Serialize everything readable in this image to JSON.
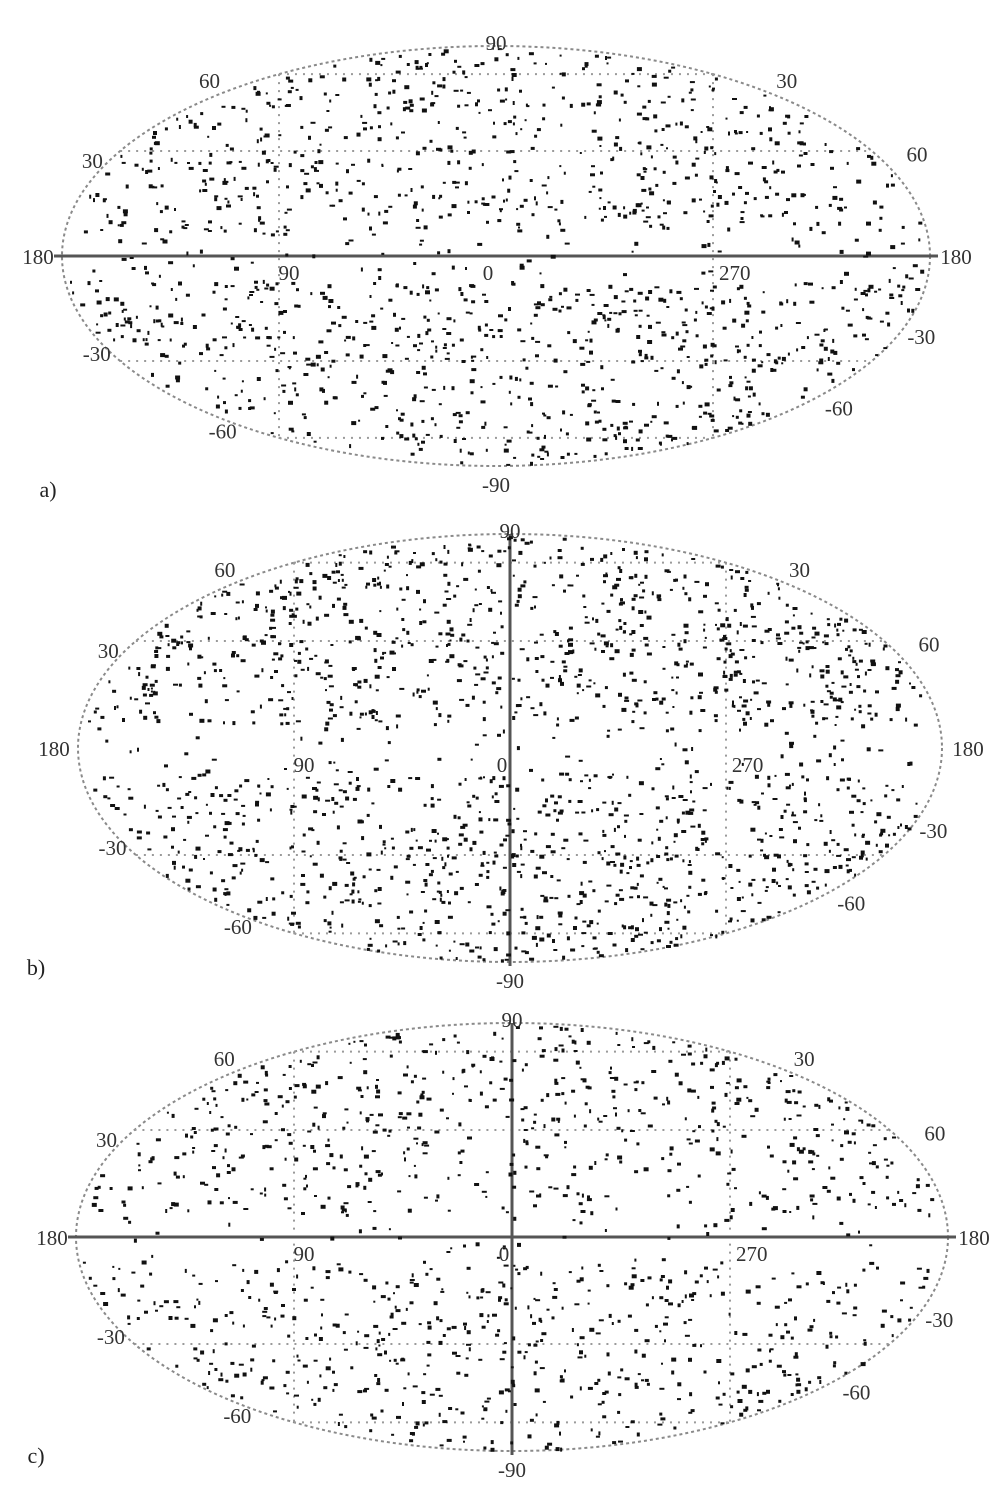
{
  "chart_data": [
    {
      "type": "scatter",
      "projection": "aitoff-hammer",
      "panel_label": "a)",
      "labels": {
        "top": "90",
        "bottom": "-90",
        "left": "180",
        "right": "180",
        "lat_n": [
          "60",
          "30",
          "30",
          "60"
        ],
        "lat_s": [
          "-30",
          "-60",
          "-30",
          "-60"
        ],
        "lon": [
          "90",
          "0",
          "270"
        ]
      },
      "meridian_line": false,
      "equator_line": true,
      "point_count": 1400,
      "seed": 11
    },
    {
      "type": "scatter",
      "projection": "aitoff-hammer",
      "panel_label": "b)",
      "labels": {
        "top": "90",
        "bottom": "-90",
        "left": "180",
        "right": "180",
        "lat_n": [
          "60",
          "30",
          "30",
          "60"
        ],
        "lat_s": [
          "-30",
          "-60",
          "-30",
          "-60"
        ],
        "lon": [
          "90",
          "0",
          "270"
        ]
      },
      "meridian_line": true,
      "equator_line": false,
      "point_count": 1700,
      "seed": 27
    },
    {
      "type": "scatter",
      "projection": "aitoff-hammer",
      "panel_label": "c)",
      "labels": {
        "top": "90",
        "bottom": "-90",
        "left": "180",
        "right": "180",
        "lat_n": [
          "60",
          "30",
          "30",
          "60"
        ],
        "lat_s": [
          "-30",
          "-60",
          "-30",
          "-60"
        ],
        "lon": [
          "90",
          "0",
          "270"
        ]
      },
      "meridian_line": true,
      "equator_line": true,
      "point_count": 1200,
      "seed": 53
    }
  ]
}
